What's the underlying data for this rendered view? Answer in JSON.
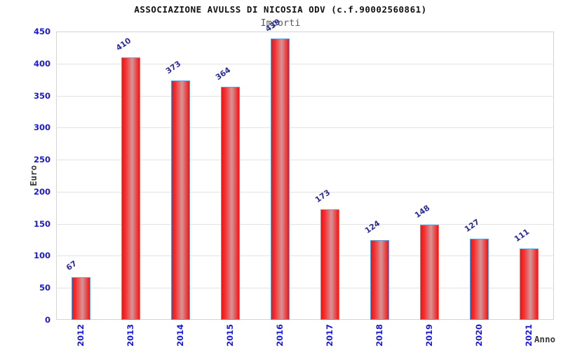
{
  "header": {
    "title": "ASSOCIAZIONE AVULSS DI NICOSIA ODV (c.f.90002560861)",
    "subtitle": "Importi"
  },
  "chart_data": {
    "type": "bar",
    "title": "ASSOCIAZIONE AVULSS DI NICOSIA ODV (c.f.90002560861)",
    "subtitle": "Importi",
    "categories": [
      "2012",
      "2013",
      "2014",
      "2015",
      "2016",
      "2017",
      "2018",
      "2019",
      "2020",
      "2021"
    ],
    "values": [
      67,
      410,
      373,
      364,
      439,
      173,
      124,
      148,
      127,
      111
    ],
    "xlabel": "Anno",
    "ylabel": "Euro",
    "ylim": [
      0,
      450
    ],
    "ytick_step": 50,
    "yticks": [
      0,
      50,
      100,
      150,
      200,
      250,
      300,
      350,
      400,
      450
    ],
    "bar_value_labels": true,
    "legend_position": "none",
    "grid": "horizontal gridlines every 50 with alternating white/gray bands",
    "colors": {
      "bar_red": "#ee1515",
      "bar_red_mid": "#f23030",
      "bar_center_light": "#d59598",
      "bar_border_blue": "#5ca0e0",
      "tick_label_blue": "#1717e6",
      "value_label_navy": "#2b2b99",
      "band_gray": "#f4f4f4",
      "gridline_gray": "#e2e2e2",
      "plot_border_gray": "#d4d4d4",
      "axis_title_dark": "#3b3b3b",
      "subtitle_gray": "#5a5a5a",
      "title_black": "#111111",
      "background": "#ffffff"
    }
  }
}
